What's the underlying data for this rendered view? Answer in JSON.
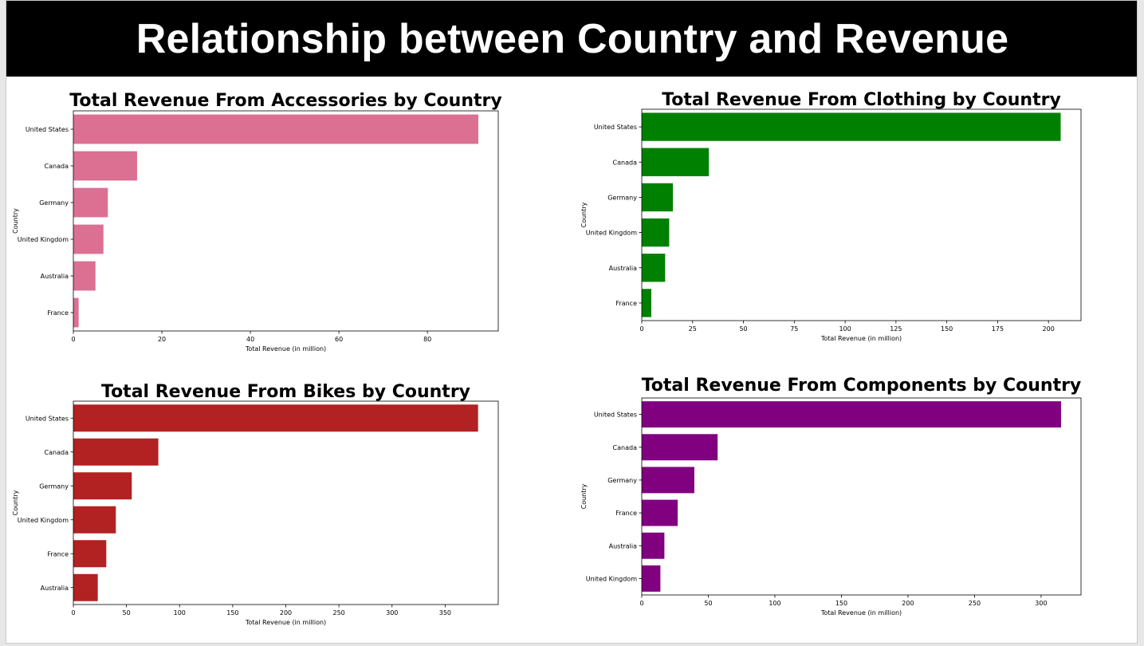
{
  "page": {
    "title": "Relationship between Country and Revenue"
  },
  "charts": [
    {
      "title": "Total Revenue From Accessories by Country",
      "xlabel": "Total Revenue (in million)",
      "ylabel": "Country",
      "color": "#db7093",
      "xlim": [
        0,
        96
      ],
      "xticks": [
        0,
        20,
        40,
        60,
        80
      ],
      "categories": [
        "United States",
        "Canada",
        "Germany",
        "United Kingdom",
        "Australia",
        "France"
      ],
      "values": [
        91.5,
        14.4,
        7.8,
        6.8,
        5.0,
        1.2
      ]
    },
    {
      "title": "Total Revenue From Clothing by Country",
      "xlabel": "Total Revenue (in million)",
      "ylabel": "Country",
      "color": "#008000",
      "xlim": [
        0,
        216
      ],
      "xticks": [
        0,
        25,
        50,
        75,
        100,
        125,
        150,
        175,
        200
      ],
      "categories": [
        "United States",
        "Canada",
        "Germany",
        "United Kingdom",
        "Australia",
        "France"
      ],
      "values": [
        206,
        33,
        15.3,
        13.5,
        11.5,
        4.7
      ]
    },
    {
      "title": "Total Revenue From Bikes by Country",
      "xlabel": "Total Revenue (in million)",
      "ylabel": "Country",
      "color": "#b22222",
      "xlim": [
        0,
        400
      ],
      "xticks": [
        0,
        50,
        100,
        150,
        200,
        250,
        300,
        350
      ],
      "categories": [
        "United States",
        "Canada",
        "Germany",
        "United Kingdom",
        "France",
        "Australia"
      ],
      "values": [
        381,
        80,
        55,
        40,
        31,
        23
      ]
    },
    {
      "title": "Total Revenue From Components by Country",
      "xlabel": "Total Revenue (in million)",
      "ylabel": "Country",
      "color": "#800080",
      "xlim": [
        0,
        330
      ],
      "xticks": [
        0,
        50,
        100,
        150,
        200,
        250,
        300
      ],
      "categories": [
        "United States",
        "Canada",
        "Germany",
        "France",
        "Australia",
        "United Kingdom"
      ],
      "values": [
        315,
        57,
        39.5,
        27,
        17,
        14
      ]
    }
  ],
  "chart_data": [
    {
      "type": "bar",
      "orientation": "horizontal",
      "title": "Total Revenue From Accessories by Country",
      "xlabel": "Total Revenue (in million)",
      "ylabel": "Country",
      "categories": [
        "United States",
        "Canada",
        "Germany",
        "United Kingdom",
        "Australia",
        "France"
      ],
      "values": [
        91.5,
        14.4,
        7.8,
        6.8,
        5.0,
        1.2
      ],
      "xlim": [
        0,
        96
      ]
    },
    {
      "type": "bar",
      "orientation": "horizontal",
      "title": "Total Revenue From Clothing by Country",
      "xlabel": "Total Revenue (in million)",
      "ylabel": "Country",
      "categories": [
        "United States",
        "Canada",
        "Germany",
        "United Kingdom",
        "Australia",
        "France"
      ],
      "values": [
        206,
        33,
        15.3,
        13.5,
        11.5,
        4.7
      ],
      "xlim": [
        0,
        216
      ]
    },
    {
      "type": "bar",
      "orientation": "horizontal",
      "title": "Total Revenue From Bikes by Country",
      "xlabel": "Total Revenue (in million)",
      "ylabel": "Country",
      "categories": [
        "United States",
        "Canada",
        "Germany",
        "United Kingdom",
        "France",
        "Australia"
      ],
      "values": [
        381,
        80,
        55,
        40,
        31,
        23
      ],
      "xlim": [
        0,
        400
      ]
    },
    {
      "type": "bar",
      "orientation": "horizontal",
      "title": "Total Revenue From Components by Country",
      "xlabel": "Total Revenue (in million)",
      "ylabel": "Country",
      "categories": [
        "United States",
        "Canada",
        "Germany",
        "France",
        "Australia",
        "United Kingdom"
      ],
      "values": [
        315,
        57,
        39.5,
        27,
        17,
        14
      ],
      "xlim": [
        0,
        330
      ]
    }
  ]
}
